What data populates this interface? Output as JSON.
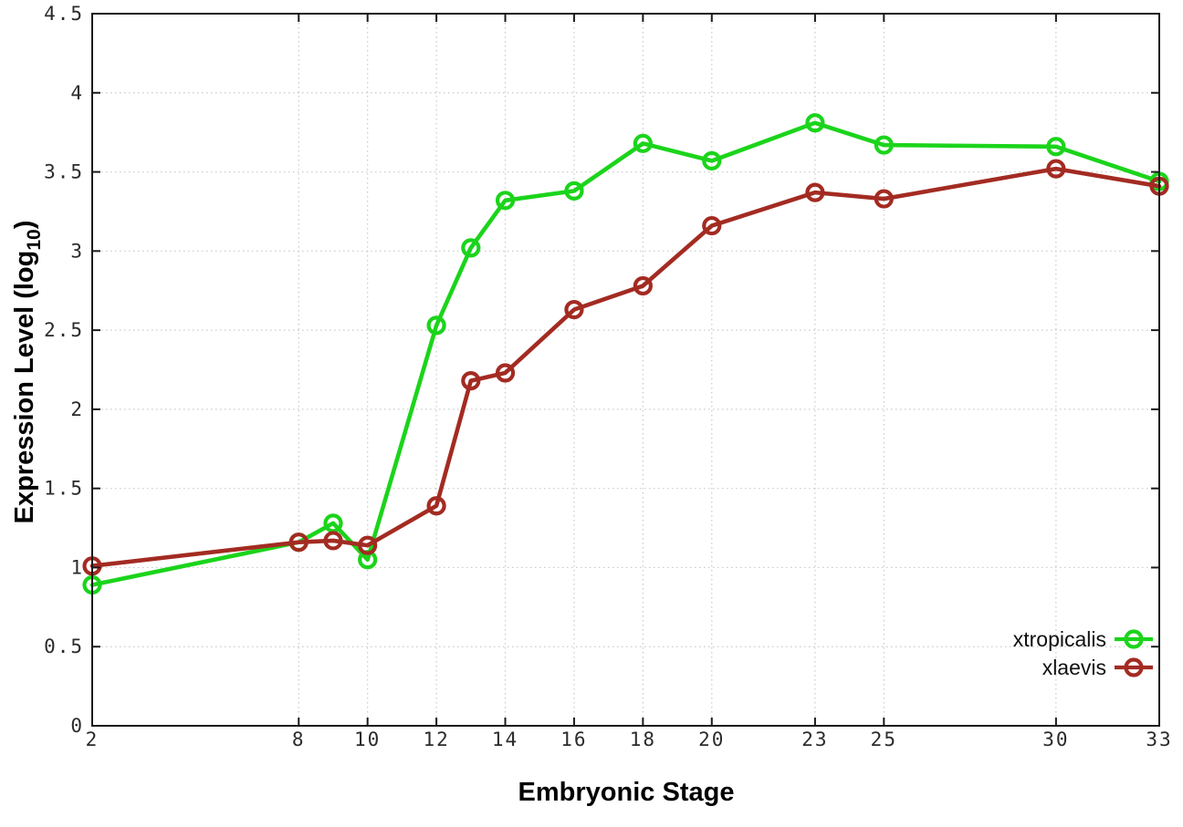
{
  "figure": {
    "background": "#ffffff",
    "border_color": "#1a1a1a",
    "grid_color": "#c9c9c9",
    "tick_color": "#1a1a1a"
  },
  "axes": {
    "x_title": "Embryonic Stage",
    "y_title_prefix": "Expression Level (log",
    "y_title_sub": "10",
    "y_title_suffix": ")"
  },
  "chart_data": {
    "type": "line",
    "title": "",
    "xlabel": "Embryonic Stage",
    "ylabel": "Expression Level (log10)",
    "xlim": [
      2,
      33
    ],
    "ylim": [
      0,
      4.5
    ],
    "grid": true,
    "legend_position": "bottom-right",
    "marker": "open-circle",
    "x": [
      2,
      8,
      9,
      10,
      12,
      13,
      14,
      16,
      18,
      20,
      23,
      25,
      30,
      33
    ],
    "x_ticks": [
      2,
      8,
      10,
      12,
      14,
      16,
      18,
      20,
      23,
      25,
      30,
      33
    ],
    "x_tick_labels": [
      "2",
      "8",
      "10",
      "12",
      "14",
      "16",
      "18",
      "20",
      "23",
      "25",
      "30",
      "33"
    ],
    "y_ticks": [
      0,
      0.5,
      1,
      1.5,
      2,
      2.5,
      3,
      3.5,
      4,
      4.5
    ],
    "y_tick_labels": [
      "0",
      "0.5",
      "1",
      "1.5",
      "2",
      "2.5",
      "3",
      "3.5",
      "4",
      "4.5"
    ],
    "series": [
      {
        "name": "xtropicalis",
        "color": "#1bd41b",
        "values": [
          0.89,
          1.16,
          1.28,
          1.05,
          2.53,
          3.02,
          3.32,
          3.38,
          3.68,
          3.57,
          3.81,
          3.67,
          3.66,
          3.44
        ]
      },
      {
        "name": "xlaevis",
        "color": "#a32b22",
        "values": [
          1.01,
          1.16,
          1.17,
          1.14,
          1.39,
          2.18,
          2.23,
          2.63,
          2.78,
          3.16,
          3.37,
          3.33,
          3.52,
          3.41
        ]
      }
    ]
  }
}
